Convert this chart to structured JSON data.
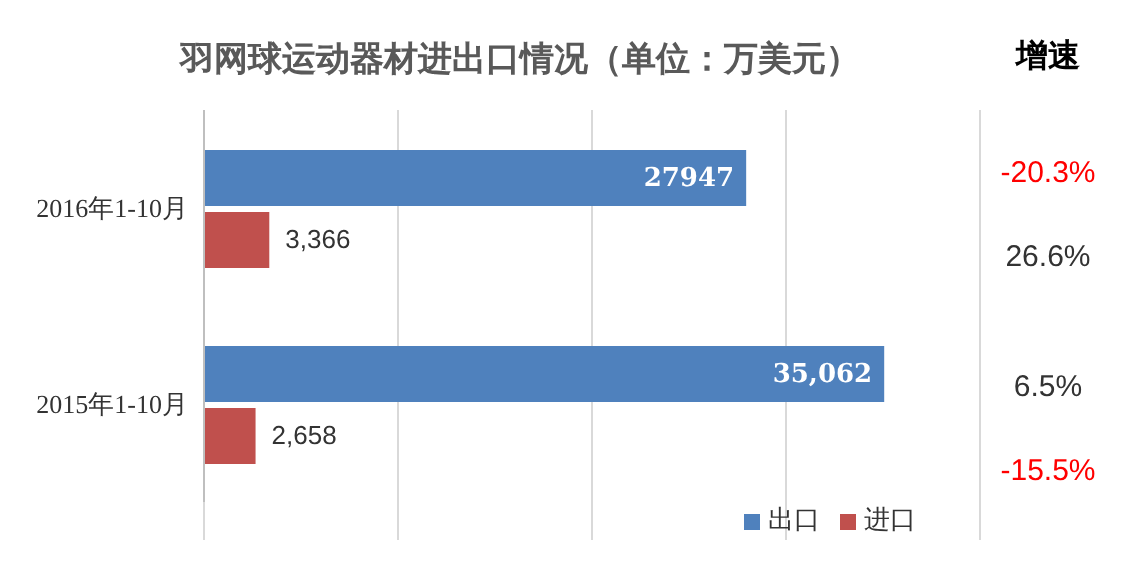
{
  "chart_data": {
    "type": "bar",
    "orientation": "horizontal",
    "title": "羽网球运动器材进出口情况（单位：万美元）",
    "categories": [
      "2016年1-10月",
      "2015年1-10月"
    ],
    "series": [
      {
        "name": "出口",
        "color": "#4f81bd",
        "values": [
          27947,
          35062
        ],
        "value_labels": [
          "27947",
          "35,062"
        ]
      },
      {
        "name": "进口",
        "color": "#c0504d",
        "values": [
          3366,
          2658
        ],
        "value_labels": [
          "3,366",
          "2,658"
        ]
      }
    ],
    "xlim": [
      0,
      40000
    ],
    "xticks": [
      {
        "value": 0,
        "label": null
      },
      {
        "value": 10000,
        "label": null
      },
      {
        "value": 20000,
        "label": null
      },
      {
        "value": 30000,
        "label": null
      },
      {
        "value": 40000,
        "label": null
      }
    ],
    "grid": "x",
    "tick_labels": "y",
    "legend": "bottom right",
    "annotations": [
      "增速",
      "-20.3%",
      "26.6%",
      "6.5%",
      "-15.5%"
    ]
  }
}
